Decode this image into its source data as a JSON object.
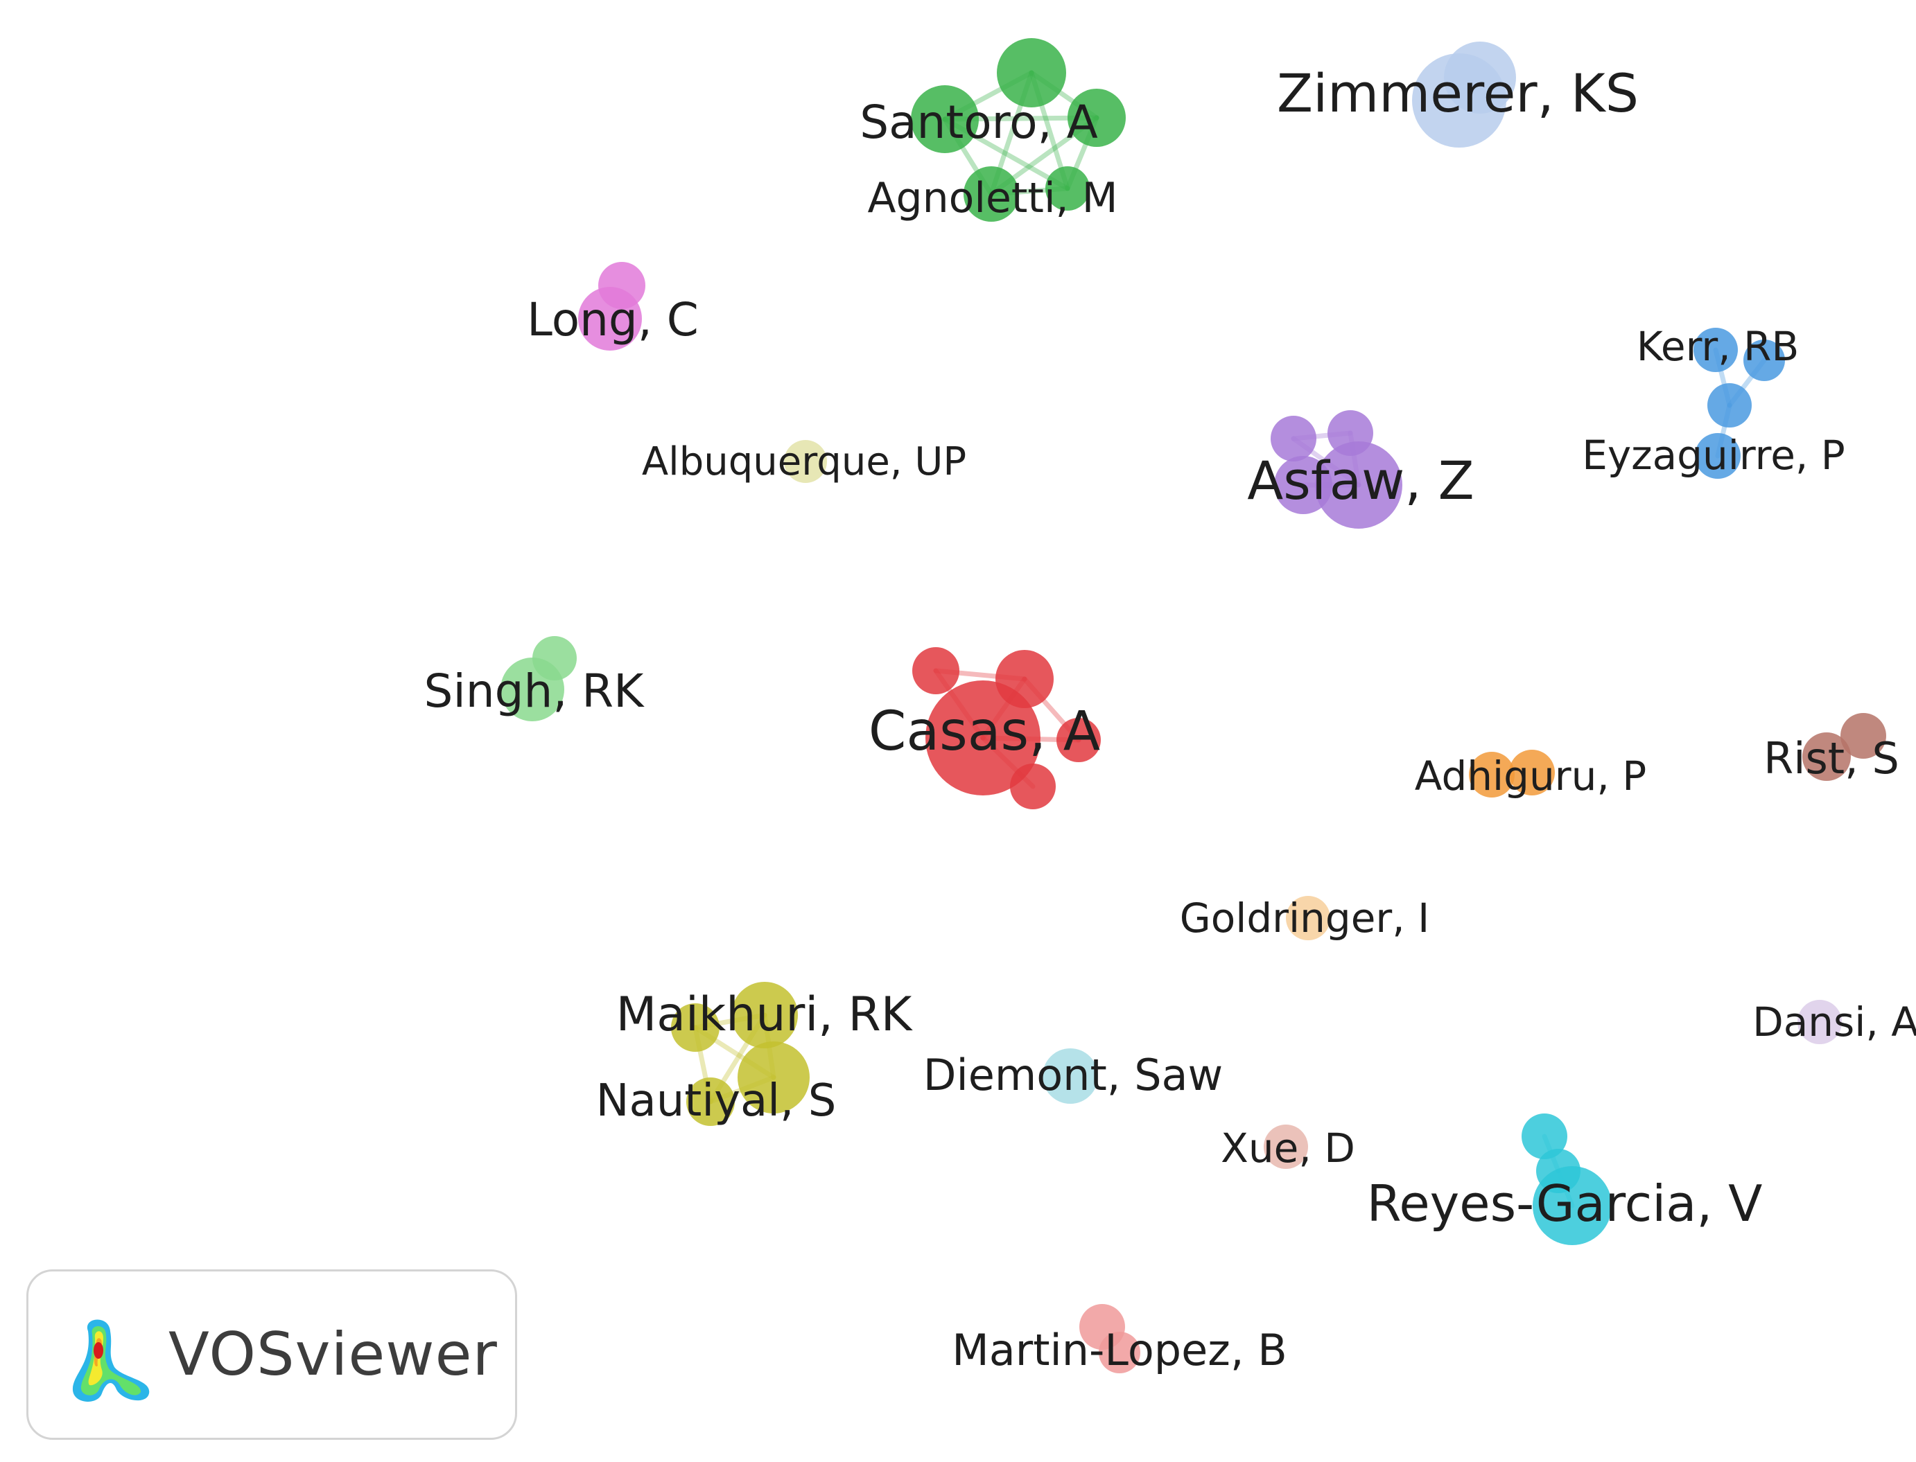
{
  "nodes": [
    {
      "label": "Zimmerer, KS",
      "color": "#b7cdec",
      "cluster": "zimmerer"
    },
    {
      "label": "Santoro, A",
      "color": "#39b34a",
      "cluster": "santoro"
    },
    {
      "label": "Agnoletti, M",
      "color": "#39b34a",
      "cluster": "santoro"
    },
    {
      "label": "Long, C",
      "color": "#e27ad9",
      "cluster": "long"
    },
    {
      "label": "Kerr, RB",
      "color": "#4a9ae0",
      "cluster": "kerr"
    },
    {
      "label": "Eyzaguirre, P",
      "color": "#4a9ae0",
      "cluster": "kerr"
    },
    {
      "label": "Albuquerque, UP",
      "color": "#e3e3a8",
      "cluster": "albuquerque"
    },
    {
      "label": "Asfaw, Z",
      "color": "#a77ad8",
      "cluster": "asfaw"
    },
    {
      "label": "Singh, RK",
      "color": "#8ad98e",
      "cluster": "singh"
    },
    {
      "label": "Casas, A",
      "color": "#e2393f",
      "cluster": "casas"
    },
    {
      "label": "Adhiguru, P",
      "color": "#f29a3a",
      "cluster": "adhiguru"
    },
    {
      "label": "Rist, S",
      "color": "#b57367",
      "cluster": "rist"
    },
    {
      "label": "Goldringer, I",
      "color": "#f7cf9b",
      "cluster": "goldringer"
    },
    {
      "label": "Maikhuri, RK",
      "color": "#c3c12f",
      "cluster": "maikhuri"
    },
    {
      "label": "Nautiyal, S",
      "color": "#c3c12f",
      "cluster": "maikhuri"
    },
    {
      "label": "Dansi, A",
      "color": "#dccde9",
      "cluster": "dansi"
    },
    {
      "label": "Diemont, Saw",
      "color": "#a8dde5",
      "cluster": "diemont"
    },
    {
      "label": "Xue, D",
      "color": "#e8b7ae",
      "cluster": "xue"
    },
    {
      "label": "Reyes-Garcia, V",
      "color": "#2ec7d8",
      "cluster": "reyes"
    },
    {
      "label": "Martin-Lopez, B",
      "color": "#f09a9a",
      "cluster": "martin"
    }
  ],
  "logo": {
    "text": "VOSviewer"
  }
}
